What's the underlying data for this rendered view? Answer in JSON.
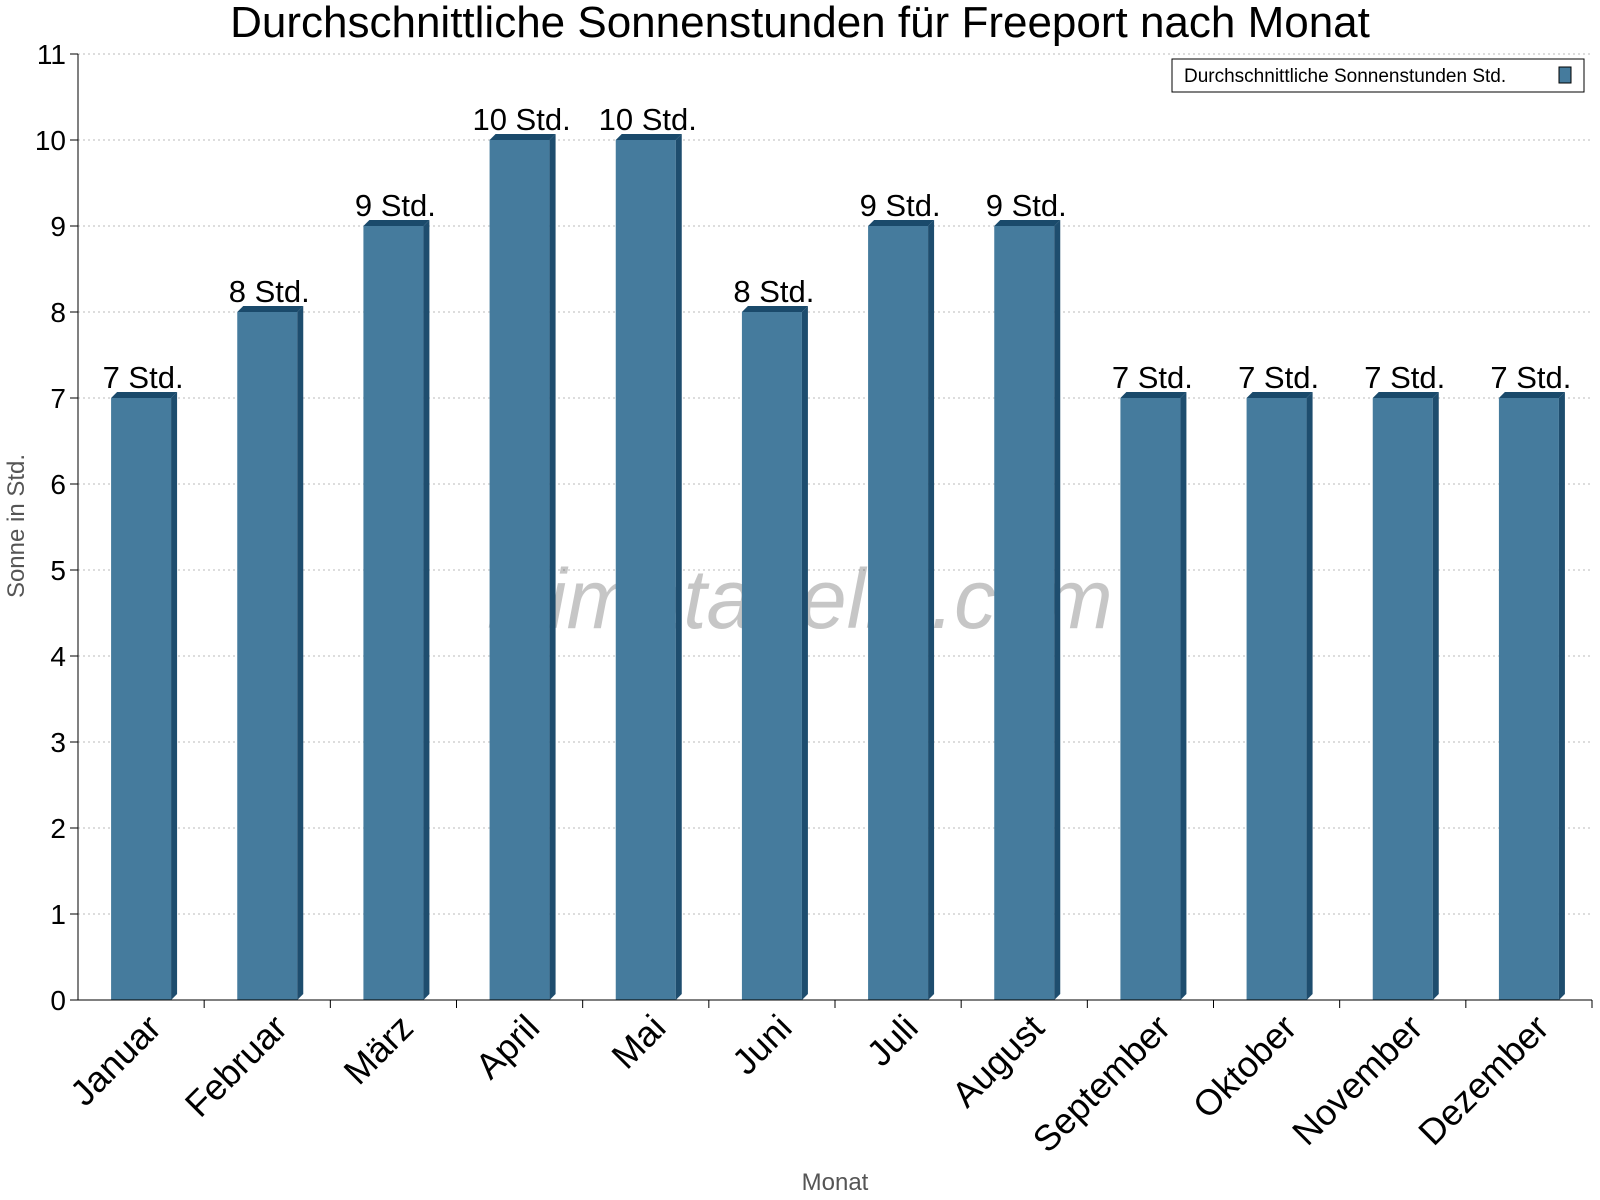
{
  "chart_data": {
    "type": "bar",
    "title": "Durchschnittliche Sonnenstunden für Freeport nach Monat",
    "xlabel": "Monat",
    "ylabel": "Sonne in Std.",
    "ylim": [
      0,
      11
    ],
    "yticks": [
      0,
      1,
      2,
      3,
      4,
      5,
      6,
      7,
      8,
      9,
      10,
      11
    ],
    "grid": true,
    "legend_position": "top-right",
    "categories": [
      "Januar",
      "Februar",
      "März",
      "April",
      "Mai",
      "Juni",
      "Juli",
      "August",
      "September",
      "Oktober",
      "November",
      "Dezember"
    ],
    "series": [
      {
        "name": "Durchschnittliche Sonnenstunden Std.",
        "values": [
          7,
          8,
          9,
          10,
          10,
          8,
          9,
          9,
          7,
          7,
          7,
          7
        ],
        "labels": [
          "7 Std.",
          "8 Std.",
          "9 Std.",
          "10 Std.",
          "10 Std.",
          "8 Std.",
          "9 Std.",
          "9 Std.",
          "7 Std.",
          "7 Std.",
          "7 Std.",
          "7 Std."
        ],
        "color": "#457b9d",
        "side_color": "#1e4d6e",
        "top_color": "#1a4a6b"
      }
    ],
    "watermark": "klimatabelle.com"
  }
}
